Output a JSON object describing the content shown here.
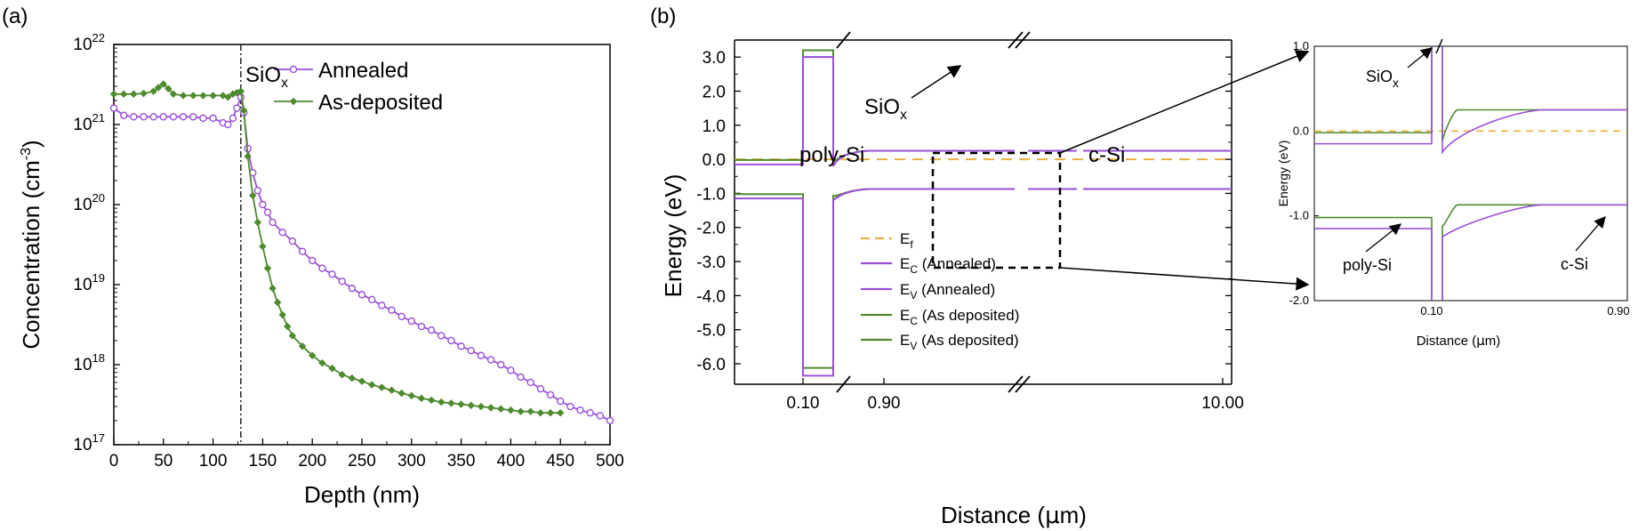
{
  "panel_labels": [
    "(a)",
    "(b)"
  ],
  "chart_data": [
    {
      "panel": "(a)",
      "type": "line",
      "xlabel": "Depth (nm)",
      "ylabel_main": "Concentration (cm",
      "ylabel_sup": "-3",
      "ylabel_tail": ")",
      "yscale": "log",
      "xlim": [
        0,
        500
      ],
      "ylim": [
        1e+17,
        1e+22
      ],
      "xticks": [
        "0",
        "50",
        "100",
        "150",
        "200",
        "250",
        "300",
        "350",
        "400",
        "450",
        "500"
      ],
      "yticks": [
        {
          "base": "10",
          "exp": "17"
        },
        {
          "base": "10",
          "exp": "18"
        },
        {
          "base": "10",
          "exp": "19"
        },
        {
          "base": "10",
          "exp": "20"
        },
        {
          "base": "10",
          "exp": "21"
        },
        {
          "base": "10",
          "exp": "22"
        }
      ],
      "interface_depth": 128,
      "interface_label_main": "SiO",
      "interface_label_sub": "x",
      "series": [
        {
          "name": "Annealed",
          "color": "#9a4fd8",
          "marker": "circle",
          "x": [
            0,
            10,
            20,
            30,
            40,
            50,
            60,
            70,
            80,
            90,
            100,
            110,
            115,
            120,
            124,
            128,
            131,
            135,
            140,
            145,
            150,
            155,
            160,
            170,
            180,
            190,
            200,
            210,
            220,
            230,
            240,
            250,
            260,
            270,
            280,
            290,
            300,
            310,
            320,
            330,
            340,
            350,
            360,
            370,
            380,
            390,
            400,
            410,
            420,
            430,
            440,
            450,
            460,
            470,
            480,
            490,
            500
          ],
          "y": [
            1.6e+21,
            1.3e+21,
            1.25e+21,
            1.25e+21,
            1.25e+21,
            1.25e+21,
            1.25e+21,
            1.25e+21,
            1.25e+21,
            1.2e+21,
            1.2e+21,
            1.05e+21,
            1e+21,
            1.2e+21,
            1.6e+21,
            2.2e+21,
            1.4e+21,
            5e+20,
            2.5e+20,
            1.5e+20,
            1e+20,
            8e+19,
            6e+19,
            4.5e+19,
            3.5e+19,
            2.6e+19,
            2e+19,
            1.6e+19,
            1.35e+19,
            1.1e+19,
            9e+18,
            7.5e+18,
            6.5e+18,
            5.5e+18,
            4.8e+18,
            4e+18,
            3.5e+18,
            3e+18,
            2.7e+18,
            2.3e+18,
            2e+18,
            1.7e+18,
            1.5e+18,
            1.3e+18,
            1.15e+18,
            1e+18,
            8.5e+17,
            7e+17,
            6e+17,
            5e+17,
            4.2e+17,
            3.5e+17,
            3e+17,
            2.7e+17,
            2.5e+17,
            2.3e+17,
            2e+17
          ]
        },
        {
          "name": "As-deposited",
          "color": "#4e8a2e",
          "marker": "diamond",
          "x": [
            0,
            10,
            20,
            30,
            40,
            45,
            50,
            55,
            60,
            70,
            80,
            90,
            100,
            110,
            115,
            120,
            124,
            128,
            131,
            135,
            140,
            145,
            150,
            155,
            160,
            165,
            170,
            175,
            180,
            190,
            200,
            210,
            220,
            230,
            240,
            250,
            260,
            270,
            280,
            290,
            300,
            310,
            320,
            330,
            340,
            350,
            360,
            370,
            380,
            390,
            400,
            410,
            420,
            430,
            440,
            450
          ],
          "y": [
            2.4e+21,
            2.4e+21,
            2.4e+21,
            2.45e+21,
            2.6e+21,
            2.9e+21,
            3.2e+21,
            2.8e+21,
            2.4e+21,
            2.3e+21,
            2.3e+21,
            2.3e+21,
            2.3e+21,
            2.3e+21,
            2.2e+21,
            2.4e+21,
            2.5e+21,
            2.6e+21,
            1.5e+21,
            4e+20,
            1.3e+20,
            6e+19,
            3e+19,
            1.6e+19,
            9e+18,
            6e+18,
            4.2e+18,
            3e+18,
            2.3e+18,
            1.7e+18,
            1.3e+18,
            1.05e+18,
            9e+17,
            7.5e+17,
            6.8e+17,
            6.2e+17,
            5.6e+17,
            5.2e+17,
            4.8e+17,
            4.4e+17,
            4.1e+17,
            3.8e+17,
            3.6e+17,
            3.4e+17,
            3.3e+17,
            3.2e+17,
            3.1e+17,
            3e+17,
            2.9e+17,
            2.8e+17,
            2.7e+17,
            2.6e+17,
            2.6e+17,
            2.5e+17,
            2.5e+17,
            2.5e+17
          ]
        }
      ]
    },
    {
      "panel": "(b)",
      "type": "line",
      "xlabel_main": "Distance (",
      "xlabel_mu": "μ",
      "xlabel_tail": "m)",
      "ylabel": "Energy (eV)",
      "ylim": [
        -6.6,
        3.5
      ],
      "yticks": [
        "3.0",
        "2.0",
        "1.0",
        "0.0",
        "-1.0",
        "-2.0",
        "-3.0",
        "-4.0",
        "-5.0",
        "-6.0"
      ],
      "xticks": [
        "0.10",
        "0.90",
        "10.00"
      ],
      "region_labels": {
        "poly": "poly-Si",
        "csi": "c-Si"
      },
      "oxide_label_main": "SiO",
      "oxide_label_sub": "x",
      "levels": {
        "ef": 0.0,
        "ec_annealed_poly": -0.15,
        "ev_annealed_poly": -1.15,
        "ec_asdep_poly": -0.02,
        "ev_asdep_poly": -1.02,
        "ec_bulk": 0.25,
        "ev_bulk": -0.87,
        "oxide_top_annealed": 3.0,
        "oxide_bottom_annealed": -6.35,
        "oxide_top_asdep": 3.2,
        "oxide_bottom_asdep": -6.12
      },
      "legend": [
        {
          "main": "E",
          "sub": "f",
          "tail": "",
          "color": "#e8b040",
          "dash": true
        },
        {
          "main": "E",
          "sub": "C",
          "tail": " (Annealed)",
          "color": "#9a4fd8",
          "dash": false
        },
        {
          "main": "E",
          "sub": "V",
          "tail": " (Annealed)",
          "color": "#9a4fd8",
          "dash": false
        },
        {
          "main": "E",
          "sub": "C",
          "tail": " (As deposited)",
          "color": "#4e8a2e",
          "dash": false
        },
        {
          "main": "E",
          "sub": "V",
          "tail": " (As deposited)",
          "color": "#4e8a2e",
          "dash": false
        }
      ],
      "inset": {
        "ylabel": "Energy (eV)",
        "xlabel_main": "Distance (",
        "xlabel_mu": "μ",
        "xlabel_tail": "m)",
        "yticks": [
          "1.0",
          "0.0",
          "-1.0",
          "-2.0"
        ],
        "xticks": [
          "0.10",
          "0.90"
        ],
        "ylim": [
          -2.0,
          1.0
        ],
        "label_poly": "poly-Si",
        "label_csi": "c-Si",
        "label_oxide_main": "SiO",
        "label_oxide_sub": "x"
      }
    }
  ]
}
